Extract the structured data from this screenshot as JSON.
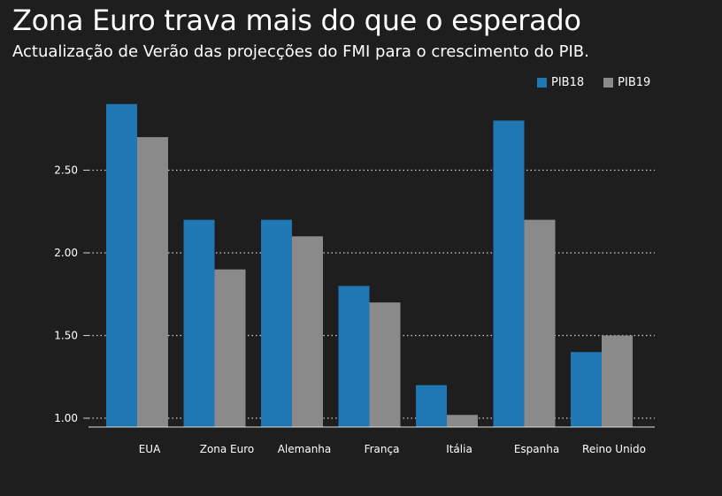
{
  "header": {
    "title": "Zona Euro trava mais do que o esperado",
    "subtitle": "Actualização de Verão das projecções do FMI para o crescimento do PIB."
  },
  "chart_data": {
    "type": "bar",
    "categories": [
      "EUA",
      "Zona Euro",
      "Alemanha",
      "França",
      "Itália",
      "Espanha",
      "Reino Unido"
    ],
    "series": [
      {
        "name": "PIB18",
        "color": "#1f77b4",
        "values": [
          2.9,
          2.2,
          2.2,
          1.8,
          1.2,
          2.8,
          1.4
        ]
      },
      {
        "name": "PIB19",
        "color": "#8a8a8a",
        "values": [
          2.7,
          1.9,
          2.1,
          1.7,
          1.02,
          2.2,
          1.5
        ]
      }
    ],
    "yticks": [
      "1.00",
      "1.50",
      "2.00",
      "2.50"
    ],
    "ylim": [
      0.95,
      3.0
    ],
    "grid": true,
    "legend_position": "top-right",
    "title": "Zona Euro trava mais do que o esperado",
    "xlabel": "",
    "ylabel": ""
  }
}
